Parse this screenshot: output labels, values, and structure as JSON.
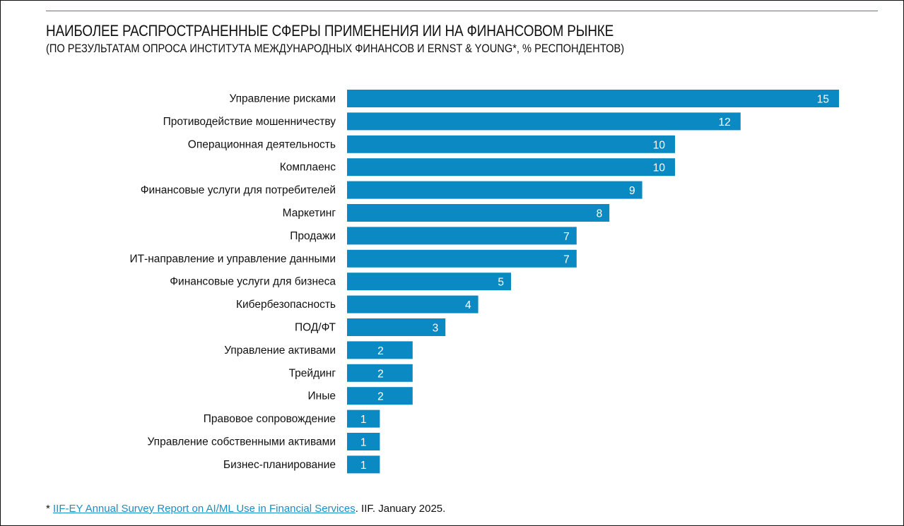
{
  "chart_data": {
    "type": "bar",
    "orientation": "horizontal",
    "title": "НАИБОЛЕЕ РАСПРОСТРАНЕННЫЕ СФЕРЫ ПРИМЕНЕНИЯ ИИ НА ФИНАНСОВОМ РЫНКЕ",
    "subtitle": "(ПО РЕЗУЛЬТАТАМ ОПРОСА ИНСТИТУТА МЕЖДУНАРОДНЫХ ФИНАНСОВ И ERNST & YOUNG*, % РЕСПОНДЕНТОВ)",
    "categories": [
      "Управление рисками",
      "Противодействие мошенничеству",
      "Операционная деятельность",
      "Комплаенс",
      "Финансовые услуги для потребителей",
      "Маркетинг",
      "Продажи",
      "ИТ-направление и управление данными",
      "Финансовые услуги для бизнеса",
      "Кибербезопасность",
      "ПОД/ФТ",
      "Управление активами",
      "Трейдинг",
      "Иные",
      "Правовое сопровождение",
      "Управление собственными активами",
      "Бизнес-планирование"
    ],
    "values": [
      15,
      12,
      10,
      10,
      9,
      8,
      7,
      7,
      5,
      4,
      3,
      2,
      2,
      2,
      1,
      1,
      1
    ],
    "xlim": [
      0,
      15
    ],
    "grid": false,
    "bar_color": "#0a89c2"
  },
  "footnote": {
    "marker": "*",
    "link_text": "IIF-EY Annual Survey Report on AI/ML Use in Financial Services",
    "rest": ". IIF. January 2025."
  }
}
